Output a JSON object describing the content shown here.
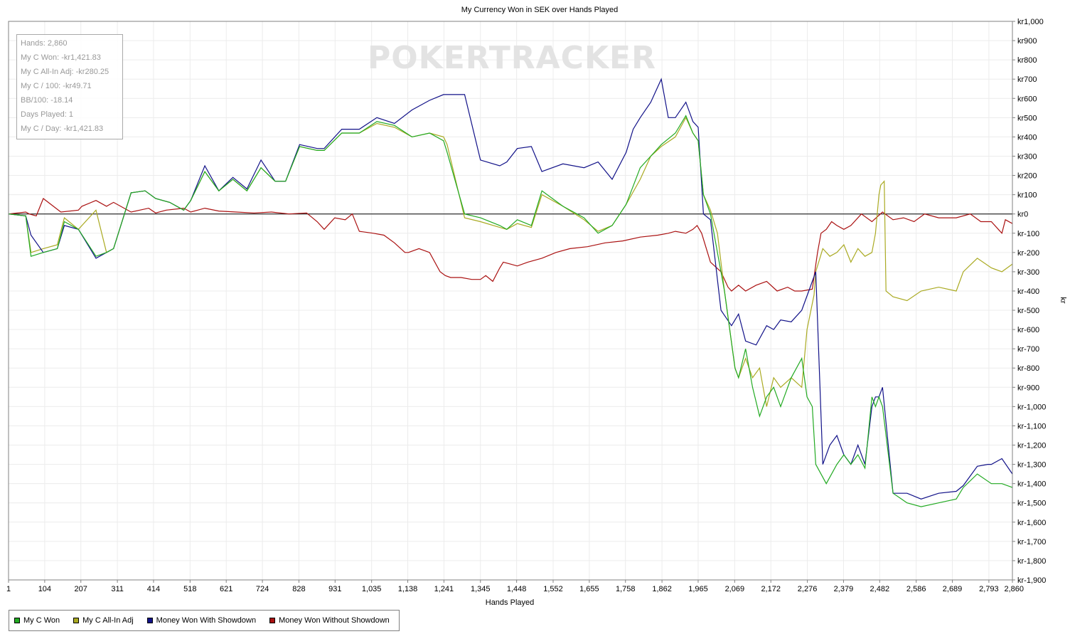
{
  "chart_data": {
    "type": "line",
    "title": "My Currency Won in SEK over Hands Played",
    "xlabel": "Hands Played",
    "ylabel": "kr",
    "xlim": [
      1,
      2860
    ],
    "ylim": [
      -1900,
      1000
    ],
    "grid": true,
    "legend_position": "bottom-left",
    "watermark": "POKERTRACKER",
    "x_ticks": [
      1,
      104,
      207,
      311,
      414,
      518,
      621,
      724,
      828,
      931,
      1035,
      1138,
      1241,
      1345,
      1448,
      1552,
      1655,
      1758,
      1862,
      1965,
      2069,
      2172,
      2276,
      2379,
      2482,
      2586,
      2689,
      2793,
      2860
    ],
    "x_tick_labels": [
      "1",
      "104",
      "207",
      "311",
      "414",
      "518",
      "621",
      "724",
      "828",
      "931",
      "1,035",
      "1,138",
      "1,241",
      "1,345",
      "1,448",
      "1,552",
      "1,655",
      "1,758",
      "1,862",
      "1,965",
      "2,069",
      "2,172",
      "2,276",
      "2,379",
      "2,482",
      "2,586",
      "2,689",
      "2,793",
      "2,860"
    ],
    "y_ticks": [
      1000,
      900,
      800,
      700,
      600,
      500,
      400,
      300,
      200,
      100,
      0,
      -100,
      -200,
      -300,
      -400,
      -500,
      -600,
      -700,
      -800,
      -900,
      -1000,
      -1100,
      -1200,
      -1300,
      -1400,
      -1500,
      -1600,
      -1700,
      -1800,
      -1900
    ],
    "y_tick_labels": [
      "kr1,000",
      "kr900",
      "kr800",
      "kr700",
      "kr600",
      "kr500",
      "kr400",
      "kr300",
      "kr200",
      "kr100",
      "kr0",
      "kr-100",
      "kr-200",
      "kr-300",
      "kr-400",
      "kr-500",
      "kr-600",
      "kr-700",
      "kr-800",
      "kr-900",
      "kr-1,000",
      "kr-1,100",
      "kr-1,200",
      "kr-1,300",
      "kr-1,400",
      "kr-1,500",
      "kr-1,600",
      "kr-1,700",
      "kr-1,800",
      "kr-1,900"
    ],
    "series": [
      {
        "name": "Money Won Without Showdown",
        "color": "#aa1111",
        "x": [
          1,
          50,
          60,
          80,
          100,
          150,
          200,
          210,
          250,
          280,
          300,
          350,
          400,
          420,
          450,
          500,
          520,
          560,
          600,
          650,
          700,
          750,
          800,
          850,
          880,
          900,
          930,
          960,
          980,
          1000,
          1040,
          1070,
          1100,
          1130,
          1140,
          1170,
          1200,
          1230,
          1245,
          1260,
          1290,
          1320,
          1345,
          1360,
          1380,
          1400,
          1410,
          1430,
          1450,
          1480,
          1520,
          1560,
          1600,
          1650,
          1700,
          1750,
          1800,
          1850,
          1880,
          1900,
          1930,
          1950,
          1962,
          1975,
          2000,
          2030,
          2050,
          2060,
          2080,
          2100,
          2130,
          2160,
          2190,
          2220,
          2240,
          2260,
          2290,
          2305,
          2315,
          2330,
          2345,
          2360,
          2380,
          2400,
          2430,
          2460,
          2490,
          2520,
          2550,
          2580,
          2610,
          2650,
          2700,
          2740,
          2770,
          2800,
          2820,
          2830,
          2840,
          2860
        ],
        "y": [
          0,
          10,
          0,
          -10,
          80,
          10,
          20,
          40,
          70,
          40,
          60,
          10,
          30,
          5,
          20,
          30,
          10,
          30,
          15,
          10,
          5,
          10,
          0,
          5,
          -40,
          -80,
          -20,
          -30,
          0,
          -90,
          -100,
          -110,
          -150,
          -200,
          -200,
          -180,
          -200,
          -300,
          -320,
          -330,
          -330,
          -340,
          -340,
          -320,
          -350,
          -280,
          -250,
          -260,
          -270,
          -250,
          -230,
          -200,
          -180,
          -170,
          -150,
          -140,
          -120,
          -110,
          -100,
          -90,
          -100,
          -80,
          -60,
          -100,
          -250,
          -300,
          -380,
          -400,
          -370,
          -400,
          -370,
          -350,
          -400,
          -380,
          -400,
          -400,
          -390,
          -200,
          -100,
          -80,
          -40,
          -60,
          -80,
          -60,
          0,
          -40,
          10,
          -30,
          -20,
          -40,
          0,
          -20,
          -20,
          0,
          -40,
          -40,
          -80,
          -100,
          -30,
          -50
        ]
      },
      {
        "name": "My C All-In Adj",
        "color": "#aaaa22",
        "x": [
          1,
          50,
          65,
          100,
          140,
          160,
          200,
          250,
          280,
          300,
          350,
          390,
          420,
          460,
          500,
          520,
          560,
          600,
          640,
          680,
          720,
          760,
          790,
          830,
          880,
          900,
          950,
          1000,
          1050,
          1100,
          1150,
          1200,
          1240,
          1250,
          1300,
          1345,
          1400,
          1420,
          1450,
          1490,
          1520,
          1580,
          1640,
          1680,
          1720,
          1760,
          1800,
          1830,
          1860,
          1900,
          1930,
          1950,
          1965,
          1980,
          2000,
          2020,
          2040,
          2070,
          2080,
          2100,
          2120,
          2140,
          2160,
          2180,
          2200,
          2230,
          2260,
          2275,
          2295,
          2300,
          2320,
          2340,
          2360,
          2380,
          2400,
          2420,
          2440,
          2460,
          2470,
          2480,
          2485,
          2495,
          2500,
          2520,
          2560,
          2600,
          2650,
          2700,
          2720,
          2760,
          2800,
          2830,
          2860
        ],
        "y": [
          0,
          -10,
          -200,
          -180,
          -160,
          -20,
          -80,
          20,
          -200,
          -180,
          110,
          120,
          80,
          60,
          20,
          70,
          220,
          120,
          180,
          120,
          240,
          170,
          170,
          350,
          330,
          330,
          420,
          420,
          470,
          450,
          400,
          420,
          400,
          360,
          -20,
          -40,
          -70,
          -80,
          -50,
          -70,
          100,
          40,
          -30,
          -90,
          -60,
          50,
          180,
          300,
          350,
          400,
          500,
          420,
          380,
          100,
          20,
          -100,
          -400,
          -800,
          -850,
          -750,
          -850,
          -800,
          -1000,
          -850,
          -900,
          -850,
          -900,
          -600,
          -420,
          -300,
          -180,
          -220,
          -200,
          -160,
          -250,
          -180,
          -220,
          -200,
          -100,
          100,
          150,
          170,
          -400,
          -430,
          -450,
          -400,
          -380,
          -400,
          -300,
          -230,
          -280,
          -300,
          -260
        ]
      },
      {
        "name": "Money Won With Showdown",
        "color": "#111188",
        "x": [
          1,
          50,
          65,
          100,
          140,
          160,
          200,
          250,
          280,
          300,
          350,
          390,
          420,
          460,
          500,
          520,
          560,
          600,
          640,
          680,
          720,
          760,
          790,
          830,
          880,
          900,
          950,
          1000,
          1050,
          1100,
          1150,
          1200,
          1240,
          1250,
          1300,
          1345,
          1400,
          1420,
          1450,
          1490,
          1520,
          1580,
          1640,
          1680,
          1720,
          1760,
          1780,
          1800,
          1830,
          1860,
          1880,
          1900,
          1930,
          1950,
          1965,
          1980,
          2000,
          2030,
          2060,
          2080,
          2100,
          2130,
          2160,
          2180,
          2200,
          2230,
          2260,
          2280,
          2300,
          2320,
          2340,
          2360,
          2380,
          2400,
          2420,
          2440,
          2460,
          2470,
          2480,
          2490,
          2520,
          2560,
          2600,
          2650,
          2700,
          2720,
          2760,
          2790,
          2800,
          2830,
          2860
        ],
        "y": [
          0,
          -10,
          -110,
          -200,
          -180,
          -60,
          -80,
          -230,
          -200,
          -180,
          110,
          120,
          80,
          60,
          20,
          70,
          250,
          120,
          190,
          130,
          280,
          170,
          170,
          360,
          340,
          340,
          440,
          440,
          500,
          470,
          540,
          590,
          620,
          620,
          620,
          280,
          250,
          270,
          340,
          350,
          220,
          260,
          240,
          270,
          180,
          320,
          440,
          500,
          580,
          700,
          500,
          500,
          580,
          480,
          450,
          0,
          -30,
          -500,
          -580,
          -520,
          -660,
          -680,
          -580,
          -600,
          -550,
          -560,
          -500,
          -400,
          -300,
          -1300,
          -1200,
          -1150,
          -1250,
          -1300,
          -1200,
          -1300,
          -1000,
          -950,
          -950,
          -900,
          -1450,
          -1450,
          -1480,
          -1450,
          -1440,
          -1410,
          -1310,
          -1300,
          -1300,
          -1270,
          -1350
        ]
      },
      {
        "name": "My C Won",
        "color": "#22aa22",
        "x": [
          1,
          50,
          65,
          100,
          140,
          160,
          200,
          250,
          280,
          300,
          350,
          390,
          420,
          460,
          500,
          520,
          560,
          600,
          640,
          680,
          720,
          760,
          790,
          830,
          880,
          900,
          950,
          1000,
          1050,
          1100,
          1150,
          1200,
          1240,
          1250,
          1300,
          1345,
          1400,
          1420,
          1450,
          1490,
          1520,
          1580,
          1640,
          1680,
          1720,
          1760,
          1800,
          1830,
          1860,
          1900,
          1930,
          1950,
          1965,
          1980,
          2000,
          2020,
          2040,
          2070,
          2080,
          2100,
          2120,
          2140,
          2160,
          2180,
          2200,
          2230,
          2260,
          2275,
          2290,
          2300,
          2330,
          2360,
          2380,
          2400,
          2420,
          2440,
          2460,
          2470,
          2480,
          2490,
          2520,
          2560,
          2600,
          2650,
          2700,
          2720,
          2760,
          2800,
          2830,
          2860
        ],
        "y": [
          0,
          -10,
          -220,
          -200,
          -180,
          -40,
          -80,
          -220,
          -200,
          -180,
          110,
          120,
          80,
          60,
          20,
          70,
          220,
          120,
          180,
          120,
          240,
          170,
          170,
          350,
          330,
          330,
          420,
          420,
          480,
          460,
          400,
          420,
          380,
          320,
          0,
          -20,
          -60,
          -80,
          -30,
          -60,
          120,
          40,
          -20,
          -100,
          -60,
          50,
          240,
          300,
          360,
          420,
          510,
          420,
          380,
          100,
          0,
          -200,
          -400,
          -800,
          -850,
          -700,
          -900,
          -1050,
          -950,
          -900,
          -1000,
          -850,
          -750,
          -950,
          -1000,
          -1300,
          -1400,
          -1300,
          -1250,
          -1300,
          -1250,
          -1320,
          -950,
          -1000,
          -950,
          -1000,
          -1450,
          -1500,
          -1520,
          -1500,
          -1480,
          -1420,
          -1350,
          -1400,
          -1400,
          -1420
        ]
      }
    ]
  },
  "stats": [
    "Hands: 2,860",
    "My C Won: -kr1,421.83",
    "My C All-In Adj: -kr280.25",
    "My C / 100: -kr49.71",
    "BB/100: -18.14",
    "Days Played: 1",
    "My C / Day: -kr1,421.83"
  ],
  "legend": [
    {
      "label": "My C Won",
      "color": "#22aa22"
    },
    {
      "label": "My C All-In Adj",
      "color": "#aaaa22"
    },
    {
      "label": "Money Won With Showdown",
      "color": "#111188"
    },
    {
      "label": "Money Won Without Showdown",
      "color": "#aa1111"
    }
  ]
}
